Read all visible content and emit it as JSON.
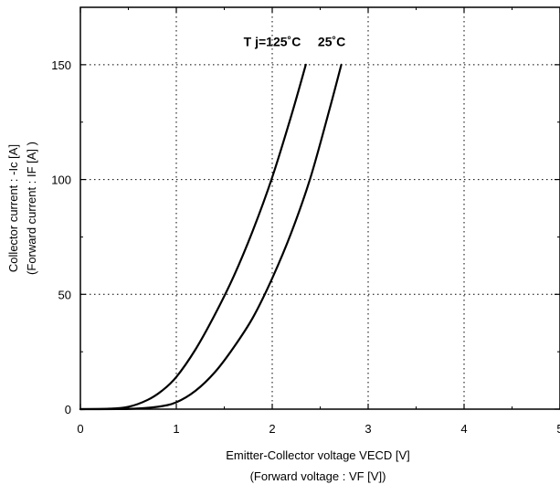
{
  "chart_data": {
    "type": "line",
    "xlabel": "Emitter-Collector voltage  VECD  [V]",
    "xlabel_sub": "(Forward  voltage   :   VF [V])",
    "ylabel": "Collector current  :  -Ic  [A]",
    "ylabel_sub": "(Forward  current  :  IF  [A] )",
    "xlim": [
      0,
      5
    ],
    "ylim": [
      0,
      175
    ],
    "xticks": [
      0,
      1,
      2,
      3,
      4,
      5
    ],
    "xtick_labels": [
      "0",
      "1",
      "2",
      "3",
      "4",
      "5"
    ],
    "yticks": [
      0,
      50,
      100,
      150
    ],
    "ytick_labels": [
      "0",
      "50",
      "100",
      "150"
    ],
    "grid": true,
    "grid_style": "dotted",
    "series": [
      {
        "name": "Tj=125˚C",
        "color": "#000000",
        "x": [
          0,
          0.3,
          0.5,
          0.7,
          0.85,
          1.0,
          1.2,
          1.4,
          1.6,
          1.8,
          2.0,
          2.2,
          2.35
        ],
        "y": [
          0,
          0.2,
          1,
          4,
          8,
          14,
          26,
          41,
          58,
          78,
          101,
          128,
          150
        ]
      },
      {
        "name": "25˚C",
        "color": "#000000",
        "x": [
          0,
          0.5,
          0.8,
          1.0,
          1.2,
          1.4,
          1.6,
          1.8,
          2.0,
          2.2,
          2.4,
          2.6,
          2.72
        ],
        "y": [
          0,
          0.1,
          1,
          3,
          8,
          16,
          27,
          40,
          57,
          77,
          101,
          131,
          150
        ]
      }
    ],
    "annotations": [
      {
        "text": "T j=125˚C",
        "x": 2.0,
        "y": 158
      },
      {
        "text": "25˚C",
        "x": 2.62,
        "y": 158
      }
    ]
  }
}
